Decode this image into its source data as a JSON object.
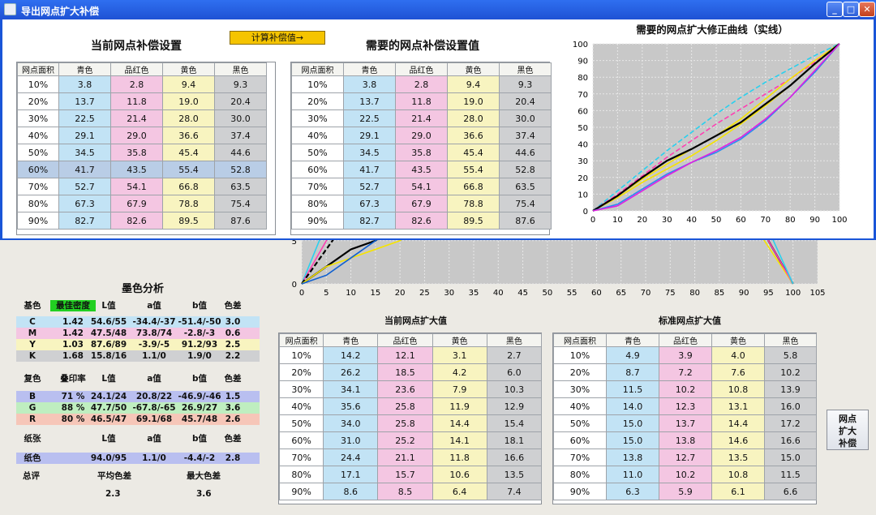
{
  "window": {
    "title": "导出网点扩大补偿",
    "controls": {
      "minimize": "_",
      "maximize": "□",
      "close": "✕"
    }
  },
  "current_settings": {
    "title": "当前网点补偿设置",
    "headers": [
      "网点面积",
      "青色",
      "品红色",
      "黄色",
      "黑色"
    ],
    "rows": [
      [
        "10%",
        "3.8",
        "2.8",
        "9.4",
        "9.3"
      ],
      [
        "20%",
        "13.7",
        "11.8",
        "19.0",
        "20.4"
      ],
      [
        "30%",
        "22.5",
        "21.4",
        "28.0",
        "30.0"
      ],
      [
        "40%",
        "29.1",
        "29.0",
        "36.6",
        "37.4"
      ],
      [
        "50%",
        "34.5",
        "35.8",
        "45.4",
        "44.6"
      ],
      [
        "60%",
        "41.7",
        "43.5",
        "55.4",
        "52.8"
      ],
      [
        "70%",
        "52.7",
        "54.1",
        "66.8",
        "63.5"
      ],
      [
        "80%",
        "67.3",
        "67.9",
        "78.8",
        "75.4"
      ],
      [
        "90%",
        "82.7",
        "82.6",
        "89.5",
        "87.6"
      ]
    ],
    "selected_row": 5
  },
  "calc_button": "计算补偿值→",
  "required_settings": {
    "title": "需要的网点补偿设置值",
    "headers": [
      "网点面积",
      "青色",
      "品红色",
      "黄色",
      "黑色"
    ],
    "rows": [
      [
        "10%",
        "3.8",
        "2.8",
        "9.4",
        "9.3"
      ],
      [
        "20%",
        "13.7",
        "11.8",
        "19.0",
        "20.4"
      ],
      [
        "30%",
        "22.5",
        "21.4",
        "28.0",
        "30.0"
      ],
      [
        "40%",
        "29.1",
        "29.0",
        "36.6",
        "37.4"
      ],
      [
        "50%",
        "34.5",
        "35.8",
        "45.4",
        "44.6"
      ],
      [
        "60%",
        "41.7",
        "43.5",
        "55.4",
        "52.8"
      ],
      [
        "70%",
        "52.7",
        "54.1",
        "66.8",
        "63.5"
      ],
      [
        "80%",
        "67.3",
        "67.9",
        "78.8",
        "75.4"
      ],
      [
        "90%",
        "82.7",
        "82.6",
        "89.5",
        "87.6"
      ]
    ]
  },
  "chart_data": [
    {
      "type": "line",
      "title": "需要的网点扩大修正曲线（实线）",
      "x": [
        0,
        10,
        20,
        30,
        40,
        50,
        60,
        70,
        80,
        90,
        100
      ],
      "xlim": [
        0,
        100
      ],
      "ylim": [
        0,
        100
      ],
      "xticks": [
        "0",
        "10",
        "20",
        "30",
        "40",
        "50",
        "60",
        "70",
        "80",
        "90",
        "100"
      ],
      "yticks": [
        "0",
        "10",
        "20",
        "30",
        "40",
        "50",
        "60",
        "70",
        "80",
        "90",
        "100"
      ],
      "grid": true,
      "series": [
        {
          "color": "#2ad0ee",
          "dash": true,
          "values": [
            0,
            12,
            24,
            36,
            47,
            58,
            68,
            77,
            85,
            93,
            100
          ]
        },
        {
          "color": "#ff3fb2",
          "dash": true,
          "values": [
            0,
            10,
            21,
            32,
            42,
            52,
            61,
            70,
            79,
            89,
            100
          ]
        },
        {
          "color": "#f6e400",
          "dash": false,
          "values": [
            0,
            9,
            19,
            28,
            37,
            45,
            55,
            67,
            79,
            90,
            100
          ]
        },
        {
          "color": "#f6e400",
          "dash": false,
          "values": [
            0,
            8,
            17,
            25,
            33,
            42,
            52,
            63,
            75,
            88,
            100
          ]
        },
        {
          "color": "#000000",
          "dash": false,
          "values": [
            0,
            9,
            20,
            30,
            37,
            45,
            53,
            64,
            75,
            88,
            100
          ]
        },
        {
          "color": "#2a8bf0",
          "dash": false,
          "values": [
            0,
            4,
            13,
            22,
            29,
            35,
            43,
            54,
            68,
            83,
            100
          ]
        },
        {
          "color": "#e020e0",
          "dash": false,
          "values": [
            0,
            3,
            12,
            21,
            29,
            36,
            44,
            55,
            68,
            84,
            100
          ]
        }
      ]
    },
    {
      "type": "line",
      "x": [
        0,
        5,
        10,
        15,
        20,
        25,
        30,
        35,
        40,
        45,
        50,
        55,
        60,
        65,
        70,
        75,
        80,
        85,
        90,
        95,
        100,
        105
      ],
      "xlim": [
        0,
        105
      ],
      "ylim": [
        0,
        15
      ],
      "xticks": [
        "0",
        "5",
        "10",
        "15",
        "20",
        "25",
        "30",
        "35",
        "40",
        "45",
        "50",
        "55",
        "60",
        "65",
        "70",
        "75",
        "80",
        "85",
        "90",
        "95",
        "100",
        "105"
      ],
      "yticks": [
        "0",
        "5"
      ],
      "grid": true,
      "series": [
        {
          "color": "#2ad0ee",
          "points": [
            [
              0,
              0
            ],
            [
              5,
              7
            ],
            [
              10,
              11
            ],
            [
              15,
              13
            ]
          ]
        },
        {
          "color": "#ff3fb2",
          "points": [
            [
              0,
              0
            ],
            [
              5,
              5
            ],
            [
              10,
              9
            ],
            [
              15,
              12
            ],
            [
              20,
              14
            ]
          ]
        },
        {
          "color": "#000000",
          "dash": true,
          "points": [
            [
              0,
              0
            ],
            [
              5,
              4
            ],
            [
              10,
              8
            ],
            [
              15,
              10
            ],
            [
              20,
              12
            ]
          ]
        },
        {
          "color": "#000000",
          "points": [
            [
              0,
              0
            ],
            [
              5,
              2
            ],
            [
              10,
              4
            ],
            [
              15,
              5
            ],
            [
              20,
              7
            ],
            [
              25,
              9
            ]
          ]
        },
        {
          "color": "#f6e400",
          "points": [
            [
              0,
              0
            ],
            [
              5,
              2
            ],
            [
              10,
              3
            ],
            [
              15,
              4
            ],
            [
              20,
              5
            ],
            [
              25,
              7
            ],
            [
              30,
              9
            ]
          ]
        },
        {
          "color": "#1060d0",
          "points": [
            [
              0,
              0
            ],
            [
              5,
              1
            ],
            [
              10,
              3
            ],
            [
              15,
              5
            ],
            [
              20,
              7
            ]
          ]
        },
        {
          "color": "#000000",
          "points": [
            [
              90,
              11
            ],
            [
              95,
              5
            ],
            [
              100,
              0
            ]
          ]
        },
        {
          "color": "#f6e400",
          "points": [
            [
              88,
              11
            ],
            [
              93,
              6
            ],
            [
              100,
              0
            ]
          ]
        },
        {
          "color": "#ff3fb2",
          "points": [
            [
              90,
              9
            ],
            [
              95,
              5
            ],
            [
              100,
              0
            ]
          ]
        },
        {
          "color": "#2ad0ee",
          "points": [
            [
              92,
              10
            ],
            [
              96,
              5
            ],
            [
              100,
              0
            ]
          ]
        }
      ]
    }
  ],
  "ink_analysis": {
    "title": "墨色分析",
    "primary": {
      "header": [
        "基色",
        "最佳密度",
        "L值",
        "a值",
        "b值",
        "色差"
      ],
      "rows": [
        {
          "name": "C",
          "density": "1.42",
          "l": "54.6/55",
          "a": "-34.4/-37",
          "b": "-51.4/-50",
          "de": "3.0",
          "color": "#c2e3f5"
        },
        {
          "name": "M",
          "density": "1.42",
          "l": "47.5/48",
          "a": "73.8/74",
          "b": "-2.8/-3",
          "de": "0.6",
          "color": "#f4c6e2"
        },
        {
          "name": "Y",
          "density": "1.03",
          "l": "87.6/89",
          "a": "-3.9/-5",
          "b": "91.2/93",
          "de": "2.5",
          "color": "#f8f4c0"
        },
        {
          "name": "K",
          "density": "1.68",
          "l": "15.8/16",
          "a": "1.1/0",
          "b": "1.9/0",
          "de": "2.2",
          "color": "#cfd0d2"
        }
      ]
    },
    "secondary": {
      "header": [
        "复色",
        "叠印率",
        "L值",
        "a值",
        "b值",
        "色差"
      ],
      "rows": [
        {
          "name": "B",
          "density": "71 %",
          "l": "24.1/24",
          "a": "20.8/22",
          "b": "-46.9/-46",
          "de": "1.5",
          "color": "#b9bff0"
        },
        {
          "name": "G",
          "density": "88 %",
          "l": "47.7/50",
          "a": "-67.8/-65",
          "b": "26.9/27",
          "de": "3.6",
          "color": "#bfeec0"
        },
        {
          "name": "R",
          "density": "80 %",
          "l": "46.5/47",
          "a": "69.1/68",
          "b": "45.7/48",
          "de": "2.6",
          "color": "#f6c6b8"
        }
      ]
    },
    "paper": {
      "header": [
        "纸张",
        "L值",
        "a值",
        "b值",
        "色差"
      ],
      "row": {
        "name": "纸色",
        "l": "94.0/95",
        "a": "1.1/0",
        "b": "-4.4/-2",
        "de": "2.8",
        "color": "#b9bff0"
      }
    },
    "summary": {
      "label": "总评",
      "avg_label": "平均色差",
      "max_label": "最大色差",
      "avg": "2.3",
      "max": "3.6"
    }
  },
  "current_gain": {
    "title": "当前网点扩大值",
    "headers": [
      "网点面积",
      "青色",
      "品红色",
      "黄色",
      "黑色"
    ],
    "rows": [
      [
        "10%",
        "14.2",
        "12.1",
        "3.1",
        "2.7"
      ],
      [
        "20%",
        "26.2",
        "18.5",
        "4.2",
        "6.0"
      ],
      [
        "30%",
        "34.1",
        "23.6",
        "7.9",
        "10.3"
      ],
      [
        "40%",
        "35.6",
        "25.8",
        "11.9",
        "12.9"
      ],
      [
        "50%",
        "34.0",
        "25.8",
        "14.4",
        "15.4"
      ],
      [
        "60%",
        "31.0",
        "25.2",
        "14.1",
        "18.1"
      ],
      [
        "70%",
        "24.4",
        "21.1",
        "11.8",
        "16.6"
      ],
      [
        "80%",
        "17.1",
        "15.7",
        "10.6",
        "13.5"
      ],
      [
        "90%",
        "8.6",
        "8.5",
        "6.4",
        "7.4"
      ]
    ]
  },
  "standard_gain": {
    "title": "标准网点扩大值",
    "headers": [
      "网点面积",
      "青色",
      "品红色",
      "黄色",
      "黑色"
    ],
    "rows": [
      [
        "10%",
        "4.9",
        "3.9",
        "4.0",
        "5.8"
      ],
      [
        "20%",
        "8.7",
        "7.2",
        "7.6",
        "10.2"
      ],
      [
        "30%",
        "11.5",
        "10.2",
        "10.8",
        "13.9"
      ],
      [
        "40%",
        "14.0",
        "12.3",
        "13.1",
        "16.0"
      ],
      [
        "50%",
        "15.0",
        "13.7",
        "14.4",
        "17.2"
      ],
      [
        "60%",
        "15.0",
        "13.8",
        "14.6",
        "16.6"
      ],
      [
        "70%",
        "13.8",
        "12.7",
        "13.5",
        "15.0"
      ],
      [
        "80%",
        "11.0",
        "10.2",
        "10.8",
        "11.5"
      ],
      [
        "90%",
        "6.3",
        "5.9",
        "6.1",
        "6.6"
      ]
    ]
  },
  "side_button": "网点扩大补偿"
}
